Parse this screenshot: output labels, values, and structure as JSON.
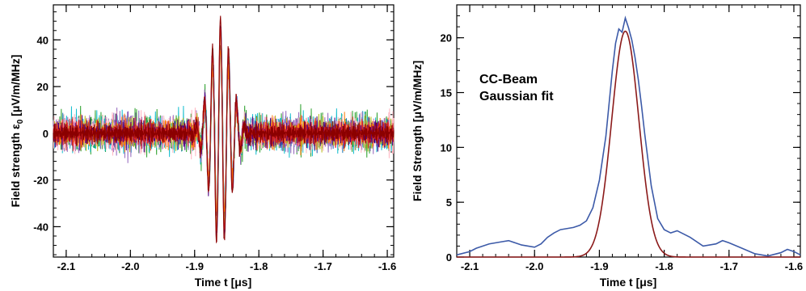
{
  "chart_data": [
    {
      "type": "line",
      "ylabel": "Field strength ε",
      "ylabel_sub": "0",
      "ylabel_units": " [μV/m/MHz]",
      "xlabel": "Time t [μs]",
      "xlim": [
        -2.12,
        -1.59
      ],
      "ylim": [
        -53,
        55
      ],
      "xticks": [
        -2.1,
        -2.0,
        -1.9,
        -1.8,
        -1.7,
        -1.6
      ],
      "xtick_labels": [
        "-2.1",
        "-2.0",
        "-1.9",
        "-1.8",
        "-1.7",
        "-1.6"
      ],
      "yticks": [
        -40,
        -20,
        0,
        20,
        40
      ],
      "ytick_labels": [
        "-40",
        "-20",
        "0",
        "20",
        "40"
      ],
      "grid": false,
      "pulse": {
        "center": -1.86,
        "period": 0.0125,
        "width": 0.016,
        "peak_max": 50,
        "trough_min": -51
      },
      "series": [
        {
          "color": "#1f77b4",
          "amplitude": 40,
          "noise": 4
        },
        {
          "color": "#2ca02c",
          "amplitude": 44,
          "noise": 4
        },
        {
          "color": "#17becf",
          "amplitude": 42,
          "noise": 5
        },
        {
          "color": "#9467bd",
          "amplitude": 46,
          "noise": 4
        },
        {
          "color": "#e377c2",
          "amplitude": 41,
          "noise": 3
        },
        {
          "color": "#ffb6c1",
          "amplitude": 39,
          "noise": 4
        },
        {
          "color": "#8c564b",
          "amplitude": 38,
          "noise": 3
        },
        {
          "color": "#bcbd22",
          "amplitude": 43,
          "noise": 4
        },
        {
          "color": "#ff7f0e",
          "amplitude": 36,
          "noise": 3
        },
        {
          "color": "#4b0082",
          "amplitude": 47,
          "noise": 4
        },
        {
          "color": "#d62728",
          "amplitude": 45,
          "noise": 3
        },
        {
          "color": "#8b0000",
          "amplitude": 50,
          "noise": 3
        }
      ]
    },
    {
      "type": "line",
      "ylabel": "Field Strength   [μV/m/MHz]",
      "xlabel": "Time t [μs]",
      "xlim": [
        -2.12,
        -1.59
      ],
      "ylim": [
        0,
        23
      ],
      "xticks": [
        -2.1,
        -2.0,
        -1.9,
        -1.8,
        -1.7,
        -1.6
      ],
      "xtick_labels": [
        "-2.1",
        "-2.0",
        "-1.9",
        "-1.8",
        "-1.7",
        "-1.6"
      ],
      "yticks": [
        0,
        5,
        10,
        15,
        20
      ],
      "ytick_labels": [
        "0",
        "5",
        "10",
        "15",
        "20"
      ],
      "grid": false,
      "legend": "upper-left",
      "series": [
        {
          "name": "CC-Beam",
          "color": "#3c5aa8",
          "x": [
            -2.12,
            -2.1,
            -2.09,
            -2.07,
            -2.05,
            -2.04,
            -2.03,
            -2.02,
            -2.0,
            -1.99,
            -1.98,
            -1.97,
            -1.96,
            -1.95,
            -1.94,
            -1.93,
            -1.92,
            -1.91,
            -1.9,
            -1.89,
            -1.885,
            -1.88,
            -1.875,
            -1.87,
            -1.865,
            -1.86,
            -1.855,
            -1.85,
            -1.845,
            -1.84,
            -1.835,
            -1.83,
            -1.82,
            -1.81,
            -1.8,
            -1.79,
            -1.78,
            -1.76,
            -1.74,
            -1.72,
            -1.71,
            -1.7,
            -1.68,
            -1.66,
            -1.64,
            -1.62,
            -1.61,
            -1.6,
            -1.59
          ],
          "y": [
            0.2,
            0.5,
            0.8,
            1.2,
            1.4,
            1.5,
            1.3,
            1.1,
            0.9,
            1.2,
            1.8,
            2.2,
            2.5,
            2.6,
            2.7,
            2.9,
            3.3,
            4.5,
            7.0,
            11.0,
            14.0,
            17.0,
            19.5,
            20.8,
            20.5,
            21.8,
            20.9,
            19.8,
            18.2,
            16.2,
            13.8,
            11.2,
            6.5,
            3.5,
            2.5,
            2.2,
            2.4,
            1.8,
            1.0,
            1.2,
            1.5,
            1.3,
            0.8,
            0.3,
            0.1,
            0.4,
            0.7,
            0.5,
            0.2
          ]
        },
        {
          "name": "Gaussian fit",
          "color": "#8b1a1a",
          "amplitude": 20.6,
          "center": -1.86,
          "sigma": 0.021
        }
      ]
    }
  ]
}
